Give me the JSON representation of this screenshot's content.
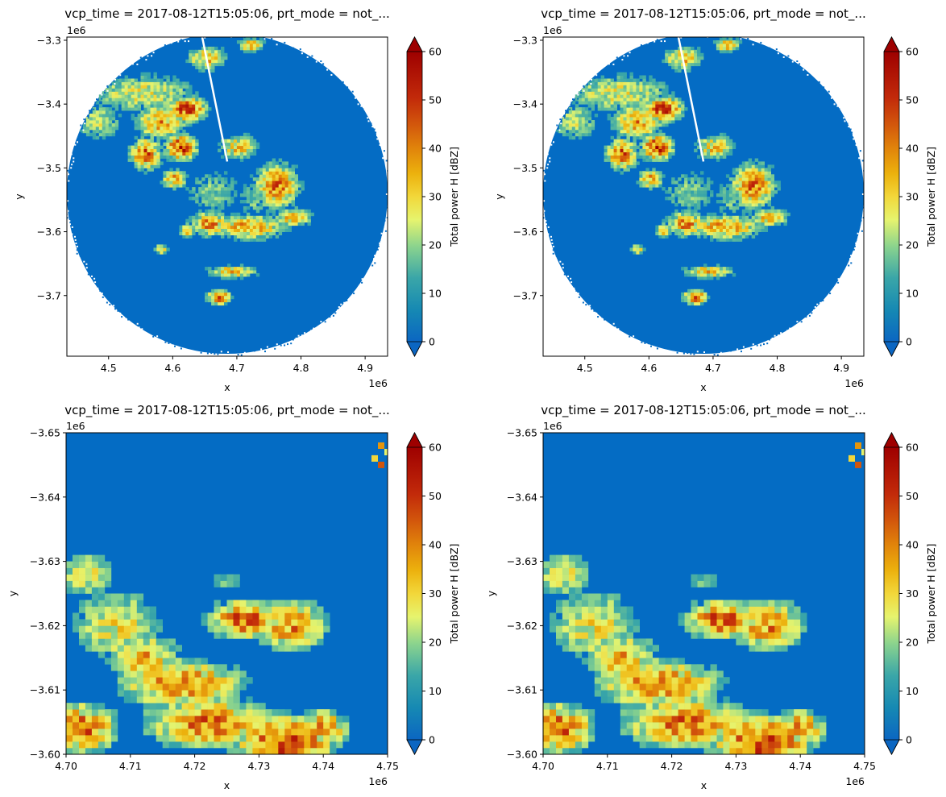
{
  "chart_data": [
    {
      "type": "heatmap",
      "panel": "top-left",
      "title": "vcp_time = 2017-08-12T15:05:06, prt_mode = not_...",
      "xlabel": "x",
      "ylabel": "y",
      "x_offset_label": "1e6",
      "y_offset_label": "1e6",
      "xlim": [
        4.435,
        4.935
      ],
      "ylim": [
        -3.795,
        -3.295
      ],
      "x_ticks": [
        4.5,
        4.6,
        4.7,
        4.8,
        4.9
      ],
      "x_tick_labels": [
        "4.5",
        "4.6",
        "4.7",
        "4.8",
        "4.9"
      ],
      "y_ticks": [
        -3.3,
        -3.4,
        -3.5,
        -3.6,
        -3.7
      ],
      "y_tick_labels": [
        "−3.3",
        "−3.4",
        "−3.5",
        "−3.6",
        "−3.7"
      ],
      "colorbar": {
        "label": "Total power H [dBZ]",
        "range": [
          0,
          60
        ],
        "ticks": [
          0,
          10,
          20,
          30,
          40,
          50,
          60
        ],
        "extend": "both",
        "colormap": "HomeyerRainbow"
      },
      "description_data": "PPI radar scan, circular domain centered near (4.685, -3.540), radius ~0.25e6; background ~0 dBZ; convective cells 30-60 dBZ NW and SE of center"
    },
    {
      "type": "heatmap",
      "panel": "top-right",
      "title": "vcp_time = 2017-08-12T15:05:06, prt_mode = not_...",
      "xlabel": "x",
      "ylabel": "y",
      "x_offset_label": "1e6",
      "y_offset_label": "1e6",
      "xlim": [
        4.435,
        4.935
      ],
      "ylim": [
        -3.795,
        -3.295
      ],
      "x_ticks": [
        4.5,
        4.6,
        4.7,
        4.8,
        4.9
      ],
      "x_tick_labels": [
        "4.5",
        "4.6",
        "4.7",
        "4.8",
        "4.9"
      ],
      "y_ticks": [
        -3.3,
        -3.4,
        -3.5,
        -3.6,
        -3.7
      ],
      "y_tick_labels": [
        "−3.3",
        "−3.4",
        "−3.5",
        "−3.6",
        "−3.7"
      ],
      "colorbar": {
        "label": "Total power H [dBZ]",
        "range": [
          0,
          60
        ],
        "ticks": [
          0,
          10,
          20,
          30,
          40,
          50,
          60
        ],
        "extend": "both",
        "colormap": "HomeyerRainbow"
      }
    },
    {
      "type": "heatmap",
      "panel": "bottom-left",
      "title": "vcp_time = 2017-08-12T15:05:06, prt_mode = not_...",
      "xlabel": "x",
      "ylabel": "y",
      "x_offset_label": "1e6",
      "y_offset_label": "1e6",
      "xlim": [
        4.7,
        4.75
      ],
      "ylim": [
        -3.6,
        -3.65
      ],
      "x_ticks": [
        4.7,
        4.71,
        4.72,
        4.73,
        4.74,
        4.75
      ],
      "x_tick_labels": [
        "4.70",
        "4.71",
        "4.72",
        "4.73",
        "4.74",
        "4.75"
      ],
      "y_ticks": [
        -3.65,
        -3.64,
        -3.63,
        -3.62,
        -3.61,
        -3.6
      ],
      "y_tick_labels": [
        "−3.65",
        "−3.64",
        "−3.63",
        "−3.62",
        "−3.61",
        "−3.60"
      ],
      "colorbar": {
        "label": "Total power H [dBZ]",
        "range": [
          0,
          60
        ],
        "ticks": [
          0,
          10,
          20,
          30,
          40,
          50,
          60
        ],
        "extend": "both",
        "colormap": "HomeyerRainbow"
      }
    },
    {
      "type": "heatmap",
      "panel": "bottom-right",
      "title": "vcp_time = 2017-08-12T15:05:06, prt_mode = not_...",
      "xlabel": "x",
      "ylabel": "y",
      "x_offset_label": "1e6",
      "y_offset_label": "1e6",
      "xlim": [
        4.7,
        4.75
      ],
      "ylim": [
        -3.6,
        -3.65
      ],
      "x_ticks": [
        4.7,
        4.71,
        4.72,
        4.73,
        4.74,
        4.75
      ],
      "x_tick_labels": [
        "4.70",
        "4.71",
        "4.72",
        "4.73",
        "4.74",
        "4.75"
      ],
      "y_ticks": [
        -3.65,
        -3.64,
        -3.63,
        -3.62,
        -3.61,
        -3.6
      ],
      "y_tick_labels": [
        "−3.65",
        "−3.64",
        "−3.63",
        "−3.62",
        "−3.61",
        "−3.60"
      ],
      "colorbar": {
        "label": "Total power H [dBZ]",
        "range": [
          0,
          60
        ],
        "ticks": [
          0,
          10,
          20,
          30,
          40,
          50,
          60
        ],
        "extend": "both",
        "colormap": "HomeyerRainbow"
      }
    }
  ],
  "colors": {
    "background_echo": "#046cc4",
    "colormap_stops": [
      "#0b66c2",
      "#1689b3",
      "#4db3a0",
      "#a3e089",
      "#f0f76a",
      "#f2c51a",
      "#e88b0e",
      "#d44a0c",
      "#b50a05",
      "#8e0000"
    ]
  }
}
